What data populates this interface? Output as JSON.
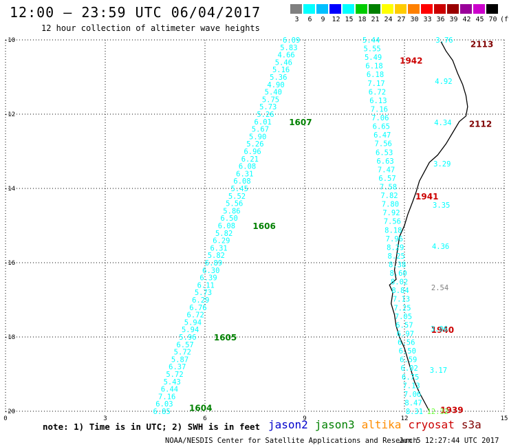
{
  "title": "12:00 – 23:59 UTC 06/04/2017",
  "subtitle": "12 hour collection of altimeter wave heights",
  "scale": {
    "colors": [
      "#808080",
      "#00ffff",
      "#00bfff",
      "#0000ff",
      "#00ffff",
      "#00cc00",
      "#008000",
      "#ffff00",
      "#ffcc00",
      "#ff8000",
      "#ff0000",
      "#cc0000",
      "#990000",
      "#990099",
      "#cc00cc",
      "#000000"
    ],
    "labels": [
      "3",
      "6",
      "9",
      "12",
      "15",
      "18",
      "21",
      "24",
      "27",
      "30",
      "33",
      "36",
      "39",
      "42",
      "45",
      "70",
      "(ft)"
    ]
  },
  "map": {
    "x_ticks": [
      "0",
      "3",
      "6",
      "9",
      "12",
      "15"
    ],
    "y_ticks": [
      "-10",
      "-12",
      "-14",
      "-16",
      "-18",
      "-20"
    ],
    "x_range": [
      0,
      15
    ],
    "y_range": [
      -10,
      -20
    ],
    "grid": "dotted"
  },
  "tracks": [
    {
      "x_start": 8.6,
      "x_end": 4.7,
      "values": [
        "6.09",
        "5.83",
        "4.66",
        "5.46",
        "5.16",
        "5.36",
        "4.90",
        "5.40",
        "5.75",
        "5.73",
        "5.26",
        "6.01",
        "5.67",
        "5.90",
        "5.26",
        "6.96",
        "6.21",
        "6.08",
        "6.31",
        "6.08",
        "5.45",
        "5.52",
        "5.56",
        "5.86",
        "6.50",
        "6.08",
        "5.82",
        "6.29",
        "6.31",
        "5.82",
        "6.89",
        "6.30",
        "6.39",
        "6.11",
        "5.73",
        "6.29",
        "6.76",
        "6.72",
        "5.94",
        "5.94",
        "5.96",
        "6.57",
        "5.72",
        "5.87",
        "6.37",
        "5.72",
        "5.43",
        "6.44",
        "7.16",
        "6.03",
        "6.85"
      ],
      "passes": [
        {
          "label": "1607",
          "lat": -12.2
        },
        {
          "label": "1606",
          "lat": -15.0
        },
        {
          "label": "1605",
          "lat": -18.0
        },
        {
          "label": "1604",
          "lat": -19.9
        }
      ],
      "pass_color": "#008000"
    },
    {
      "x_start": 11.0,
      "x_end": 12.3,
      "values": [
        "5.44",
        "5.55",
        "5.49",
        "6.18",
        "6.18",
        "7.17",
        "6.72",
        "6.13",
        "7.16",
        "7.06",
        "6.65",
        "6.47",
        "7.56",
        "6.53",
        "6.63",
        "7.47",
        "6.57",
        "7.58",
        "7.82",
        "7.80",
        "7.92",
        "7.56",
        "8.18",
        "7.96",
        "8.29",
        "8.25",
        "8.38",
        "8.60",
        "8.02",
        "8.84",
        "7.13",
        "7.25",
        "7.05",
        "6.57",
        "6.97",
        "6.56",
        "6.50",
        "6.59",
        "6.02",
        "6.75",
        "7.13",
        "7.06",
        "8.47",
        "8.31"
      ],
      "passes": [
        {
          "label": "1942",
          "lat": -10.55
        },
        {
          "label": "1941",
          "lat": -14.2
        },
        {
          "label": "1940",
          "lat": -17.8
        },
        {
          "label": "1939",
          "lat": -19.95
        }
      ],
      "pass_color": "#cc0000"
    },
    {
      "x_start": 13.2,
      "x_end": 13.0,
      "values": [
        "3.76",
        "4.92",
        "4.34",
        "3.29",
        "3.35",
        "4.36",
        "2.54",
        "3.06",
        "3.17",
        "12.32"
      ],
      "value_colors": [
        "#00ffff",
        "#00ffff",
        "#00ffff",
        "#00ffff",
        "#00ffff",
        "#00ffff",
        "#808080",
        "#00ffff",
        "#00ffff",
        "#66ff33"
      ],
      "passes": [
        {
          "label": "2113",
          "lat": -10.1
        },
        {
          "label": "2112",
          "lat": -12.25
        }
      ],
      "pass_color": "#800000"
    }
  ],
  "note": "note: 1) Time is in UTC; 2) SWH is in feet",
  "legend": [
    {
      "name": "jason2",
      "color": "#0000cc"
    },
    {
      "name": "jason3",
      "color": "#008000"
    },
    {
      "name": "altika",
      "color": "#ff8c00"
    },
    {
      "name": "cryosat",
      "color": "#cc0000"
    },
    {
      "name": "s3a",
      "color": "#800000"
    }
  ],
  "credit": "NOAA/NESDIS Center for Satellite Applications and Research",
  "timestamp": "Jun  5 12:27:44 UTC 2017"
}
